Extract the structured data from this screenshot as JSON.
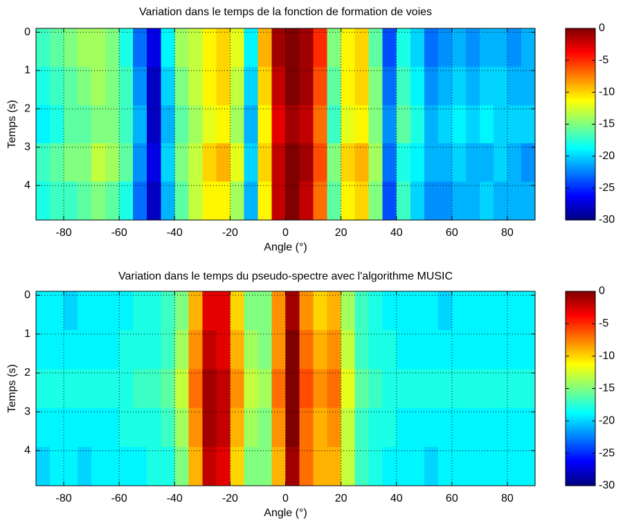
{
  "chart_data": [
    {
      "type": "heatmap",
      "title": "Variation dans le temps de la fonction de formation de voies",
      "xlabel": "Angle (°)",
      "ylabel": "Temps (s)",
      "xbins": [
        -90,
        -85,
        -80,
        -75,
        -70,
        -65,
        -60,
        -55,
        -50,
        -45,
        -40,
        -35,
        -30,
        -25,
        -20,
        -15,
        -10,
        -5,
        0,
        5,
        10,
        15,
        20,
        25,
        30,
        35,
        40,
        45,
        50,
        55,
        60,
        65,
        70,
        75,
        80,
        85,
        90
      ],
      "ybins": [
        -0.1,
        0.9,
        1.9,
        2.9,
        3.9,
        4.9
      ],
      "z": [
        [
          -17,
          -16,
          -15,
          -14,
          -14,
          -15,
          -18,
          -23,
          -27,
          -19,
          -14,
          -13,
          -11,
          -10,
          -12,
          -19,
          -9,
          -1,
          0,
          -1,
          -5,
          -15,
          -11,
          -10,
          -16,
          -24,
          -18,
          -20,
          -23,
          -22,
          -21,
          -22,
          -21,
          -21,
          -22,
          -21
        ],
        [
          -18,
          -17,
          -16,
          -15,
          -14,
          -15,
          -17,
          -22,
          -28,
          -20,
          -15,
          -13,
          -11,
          -10,
          -13,
          -20,
          -10,
          -2,
          0,
          -1,
          -6,
          -16,
          -11,
          -10,
          -15,
          -23,
          -17,
          -19,
          -22,
          -21,
          -20,
          -21,
          -20,
          -20,
          -21,
          -21
        ],
        [
          -19,
          -18,
          -16,
          -16,
          -15,
          -15,
          -17,
          -21,
          -28,
          -21,
          -16,
          -14,
          -12,
          -11,
          -14,
          -21,
          -11,
          -3,
          -1,
          -2,
          -7,
          -17,
          -12,
          -11,
          -15,
          -22,
          -16,
          -18,
          -21,
          -20,
          -19,
          -20,
          -19,
          -20,
          -20,
          -20
        ],
        [
          -17,
          -16,
          -15,
          -15,
          -13,
          -14,
          -16,
          -22,
          -27,
          -20,
          -15,
          -13,
          -10,
          -9,
          -12,
          -20,
          -10,
          -2,
          0,
          -1,
          -6,
          -15,
          -10,
          -9,
          -14,
          -23,
          -18,
          -19,
          -21,
          -21,
          -20,
          -21,
          -21,
          -20,
          -21,
          -22
        ],
        [
          -18,
          -17,
          -17,
          -16,
          -15,
          -16,
          -18,
          -23,
          -28,
          -21,
          -16,
          -13,
          -11,
          -11,
          -14,
          -21,
          -11,
          -2,
          0,
          -2,
          -7,
          -16,
          -11,
          -10,
          -15,
          -24,
          -17,
          -20,
          -22,
          -22,
          -21,
          -21,
          -20,
          -21,
          -21,
          -21
        ]
      ],
      "xlim": [
        -90,
        90
      ],
      "ylim": [
        -0.1,
        4.9
      ],
      "y_reversed": true,
      "xticks": [
        -80,
        -60,
        -40,
        -20,
        0,
        20,
        40,
        60,
        80
      ],
      "yticks": [
        0,
        1,
        2,
        3,
        4
      ],
      "clim": [
        -30,
        0
      ],
      "cticks": [
        0,
        -5,
        -10,
        -15,
        -20,
        -25,
        -30
      ],
      "colormap": "jet",
      "grid": true
    },
    {
      "type": "heatmap",
      "title": "Variation dans le temps du pseudo-spectre avec l'algorithme MUSIC",
      "xlabel": "Angle (°)",
      "ylabel": "Temps (s)",
      "xbins": [
        -90,
        -85,
        -80,
        -75,
        -70,
        -65,
        -60,
        -55,
        -50,
        -45,
        -40,
        -35,
        -30,
        -25,
        -20,
        -15,
        -10,
        -5,
        0,
        5,
        10,
        15,
        20,
        25,
        30,
        35,
        40,
        45,
        50,
        55,
        60,
        65,
        70,
        75,
        80,
        85,
        90
      ],
      "ybins": [
        -0.1,
        0.9,
        1.9,
        2.9,
        3.9,
        4.9
      ],
      "z": [
        [
          -19,
          -19,
          -20,
          -19,
          -19,
          -19,
          -19,
          -18,
          -18,
          -17,
          -15,
          -9,
          -3,
          -3,
          -10,
          -15,
          -15,
          -8,
          -1,
          -8,
          -10,
          -9,
          -14,
          -17,
          -18,
          -19,
          -19,
          -19,
          -19,
          -20,
          -19,
          -19,
          -19,
          -19,
          -19,
          -19
        ],
        [
          -19,
          -19,
          -19,
          -19,
          -19,
          -19,
          -18,
          -18,
          -18,
          -17,
          -14,
          -8,
          -2,
          -3,
          -9,
          -14,
          -15,
          -8,
          0,
          -7,
          -9,
          -8,
          -13,
          -17,
          -18,
          -18,
          -19,
          -19,
          -19,
          -19,
          -19,
          -19,
          -19,
          -19,
          -19,
          -19
        ],
        [
          -18,
          -18,
          -18,
          -18,
          -18,
          -18,
          -18,
          -17,
          -17,
          -16,
          -13,
          -7,
          -1,
          -2,
          -8,
          -13,
          -14,
          -7,
          0,
          -6,
          -8,
          -7,
          -12,
          -16,
          -17,
          -18,
          -18,
          -18,
          -18,
          -18,
          -18,
          -18,
          -18,
          -18,
          -18,
          -18
        ],
        [
          -19,
          -19,
          -19,
          -19,
          -19,
          -19,
          -18,
          -18,
          -18,
          -17,
          -14,
          -8,
          -1,
          -2,
          -9,
          -14,
          -15,
          -8,
          0,
          -7,
          -9,
          -8,
          -13,
          -17,
          -18,
          -18,
          -19,
          -19,
          -19,
          -19,
          -19,
          -19,
          -19,
          -19,
          -19,
          -19
        ],
        [
          -20,
          -19,
          -19,
          -20,
          -19,
          -19,
          -19,
          -19,
          -18,
          -18,
          -15,
          -9,
          -2,
          -3,
          -10,
          -15,
          -15,
          -9,
          -1,
          -7,
          -9,
          -9,
          -13,
          -17,
          -18,
          -19,
          -19,
          -19,
          -20,
          -19,
          -19,
          -19,
          -19,
          -19,
          -19,
          -19
        ]
      ],
      "xlim": [
        -90,
        90
      ],
      "ylim": [
        -0.1,
        4.9
      ],
      "y_reversed": true,
      "xticks": [
        -80,
        -60,
        -40,
        -20,
        0,
        20,
        40,
        60,
        80
      ],
      "yticks": [
        0,
        1,
        2,
        3,
        4
      ],
      "clim": [
        -30,
        0
      ],
      "cticks": [
        0,
        -5,
        -10,
        -15,
        -20,
        -25,
        -30
      ],
      "colormap": "jet",
      "grid": true
    }
  ]
}
